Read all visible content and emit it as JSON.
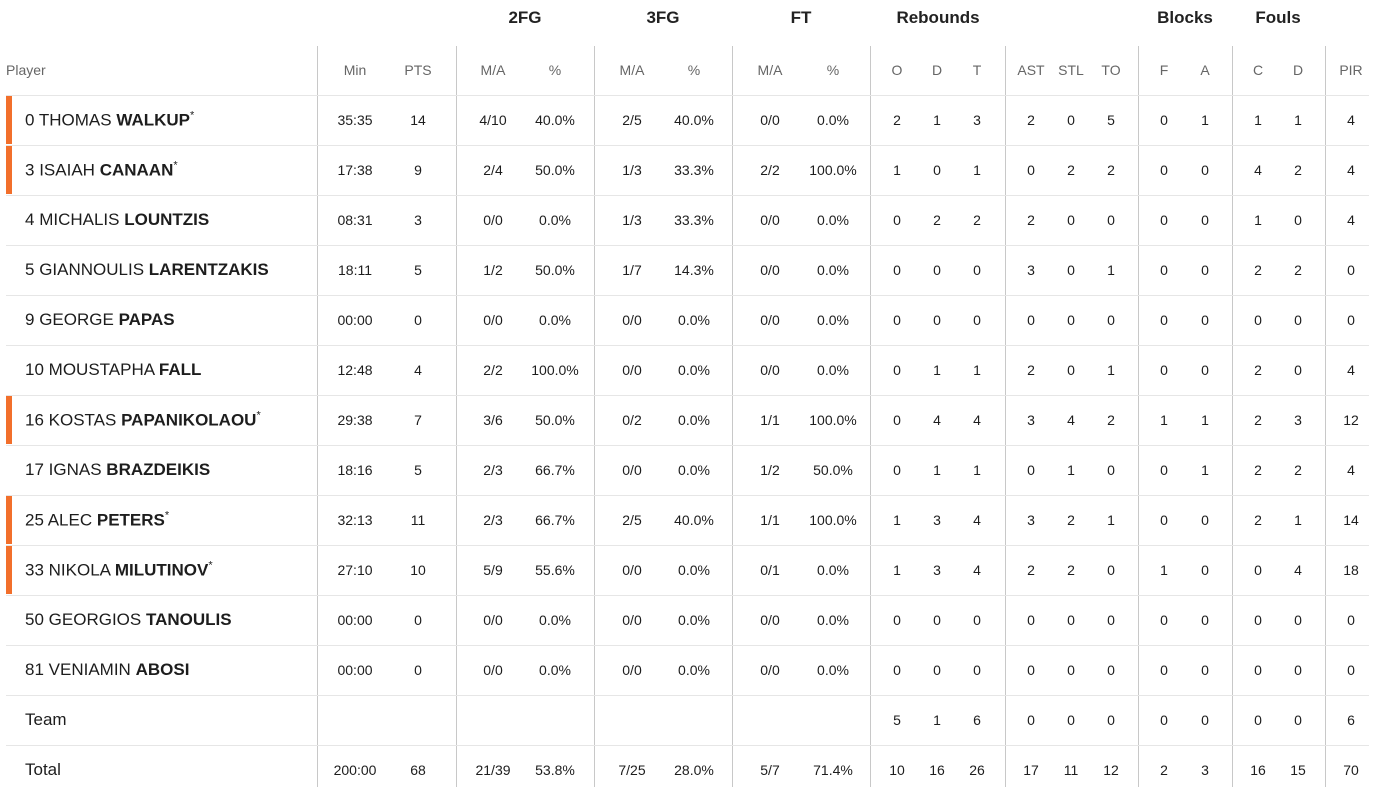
{
  "table": {
    "groups": [
      "2FG",
      "3FG",
      "FT",
      "Rebounds",
      "Blocks",
      "Fouls"
    ],
    "columns": [
      "Player",
      "Min",
      "PTS",
      "M/A",
      "%",
      "M/A",
      "%",
      "M/A",
      "%",
      "O",
      "D",
      "T",
      "AST",
      "STL",
      "TO",
      "F",
      "A",
      "C",
      "D",
      "PIR"
    ],
    "starter_mark": "*",
    "players": [
      {
        "number": 0,
        "first": "THOMAS",
        "last": "WALKUP",
        "starter": true,
        "stats": [
          "35:35",
          14,
          "4/10",
          "40.0%",
          "2/5",
          "40.0%",
          "0/0",
          "0.0%",
          2,
          1,
          3,
          2,
          0,
          5,
          0,
          1,
          1,
          1,
          4
        ]
      },
      {
        "number": 3,
        "first": "ISAIAH",
        "last": "CANAAN",
        "starter": true,
        "stats": [
          "17:38",
          9,
          "2/4",
          "50.0%",
          "1/3",
          "33.3%",
          "2/2",
          "100.0%",
          1,
          0,
          1,
          0,
          2,
          2,
          0,
          0,
          4,
          2,
          4
        ]
      },
      {
        "number": 4,
        "first": "MICHALIS",
        "last": "LOUNTZIS",
        "starter": false,
        "stats": [
          "08:31",
          3,
          "0/0",
          "0.0%",
          "1/3",
          "33.3%",
          "0/0",
          "0.0%",
          0,
          2,
          2,
          2,
          0,
          0,
          0,
          0,
          1,
          0,
          4
        ]
      },
      {
        "number": 5,
        "first": "GIANNOULIS",
        "last": "LARENTZAKIS",
        "starter": false,
        "stats": [
          "18:11",
          5,
          "1/2",
          "50.0%",
          "1/7",
          "14.3%",
          "0/0",
          "0.0%",
          0,
          0,
          0,
          3,
          0,
          1,
          0,
          0,
          2,
          2,
          0
        ]
      },
      {
        "number": 9,
        "first": "GEORGE",
        "last": "PAPAS",
        "starter": false,
        "stats": [
          "00:00",
          0,
          "0/0",
          "0.0%",
          "0/0",
          "0.0%",
          "0/0",
          "0.0%",
          0,
          0,
          0,
          0,
          0,
          0,
          0,
          0,
          0,
          0,
          0
        ]
      },
      {
        "number": 10,
        "first": "MOUSTAPHA",
        "last": "FALL",
        "starter": false,
        "stats": [
          "12:48",
          4,
          "2/2",
          "100.0%",
          "0/0",
          "0.0%",
          "0/0",
          "0.0%",
          0,
          1,
          1,
          2,
          0,
          1,
          0,
          0,
          2,
          0,
          4
        ]
      },
      {
        "number": 16,
        "first": "KOSTAS",
        "last": "PAPANIKOLAOU",
        "starter": true,
        "stats": [
          "29:38",
          7,
          "3/6",
          "50.0%",
          "0/2",
          "0.0%",
          "1/1",
          "100.0%",
          0,
          4,
          4,
          3,
          4,
          2,
          1,
          1,
          2,
          3,
          12
        ]
      },
      {
        "number": 17,
        "first": "IGNAS",
        "last": "BRAZDEIKIS",
        "starter": false,
        "stats": [
          "18:16",
          5,
          "2/3",
          "66.7%",
          "0/0",
          "0.0%",
          "1/2",
          "50.0%",
          0,
          1,
          1,
          0,
          1,
          0,
          0,
          1,
          2,
          2,
          4
        ]
      },
      {
        "number": 25,
        "first": "ALEC",
        "last": "PETERS",
        "starter": true,
        "stats": [
          "32:13",
          11,
          "2/3",
          "66.7%",
          "2/5",
          "40.0%",
          "1/1",
          "100.0%",
          1,
          3,
          4,
          3,
          2,
          1,
          0,
          0,
          2,
          1,
          14
        ]
      },
      {
        "number": 33,
        "first": "NIKOLA",
        "last": "MILUTINOV",
        "starter": true,
        "stats": [
          "27:10",
          10,
          "5/9",
          "55.6%",
          "0/0",
          "0.0%",
          "0/1",
          "0.0%",
          1,
          3,
          4,
          2,
          2,
          0,
          1,
          0,
          0,
          4,
          18
        ]
      },
      {
        "number": 50,
        "first": "GEORGIOS",
        "last": "TANOULIS",
        "starter": false,
        "stats": [
          "00:00",
          0,
          "0/0",
          "0.0%",
          "0/0",
          "0.0%",
          "0/0",
          "0.0%",
          0,
          0,
          0,
          0,
          0,
          0,
          0,
          0,
          0,
          0,
          0
        ]
      },
      {
        "number": 81,
        "first": "VENIAMIN",
        "last": "ABOSI",
        "starter": false,
        "stats": [
          "00:00",
          0,
          "0/0",
          "0.0%",
          "0/0",
          "0.0%",
          "0/0",
          "0.0%",
          0,
          0,
          0,
          0,
          0,
          0,
          0,
          0,
          0,
          0,
          0
        ]
      }
    ],
    "totals": [
      {
        "label": "Team",
        "stats": [
          null,
          null,
          null,
          null,
          null,
          null,
          null,
          null,
          5,
          1,
          6,
          0,
          0,
          0,
          0,
          0,
          0,
          0,
          6
        ]
      },
      {
        "label": "Total",
        "stats": [
          "200:00",
          68,
          "21/39",
          "53.8%",
          "7/25",
          "28.0%",
          "5/7",
          "71.4%",
          10,
          16,
          26,
          17,
          11,
          12,
          2,
          3,
          16,
          15,
          70
        ]
      }
    ]
  }
}
